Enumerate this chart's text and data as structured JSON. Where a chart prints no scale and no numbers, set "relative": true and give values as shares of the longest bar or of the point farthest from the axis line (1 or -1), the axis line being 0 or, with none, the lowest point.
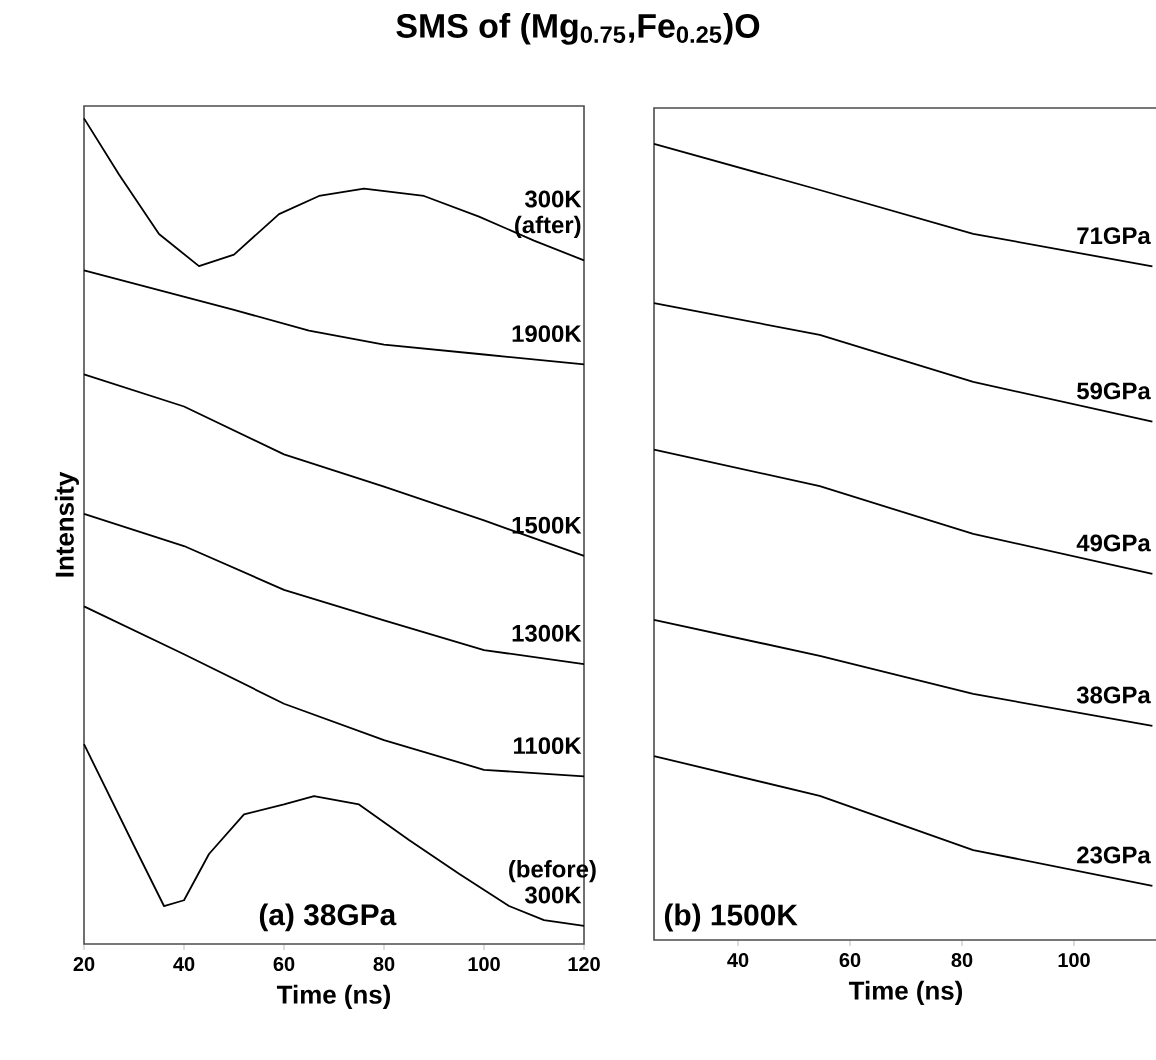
{
  "chart_data": [
    {
      "type": "line",
      "title": "SMS of (Mg$_{0.75}$,Fe$_{0.25}$)O",
      "xlabel": "Time (ns)",
      "ylabel": "Intensity",
      "relative": true,
      "xlim": [
        20,
        120
      ],
      "xticks": [
        20,
        40,
        60,
        80,
        100,
        120
      ],
      "annotations": [
        "(a) 38GPa"
      ],
      "series": [
        {
          "name": "300K (after)",
          "color": "#000000",
          "x": [
            20,
            27,
            35,
            43,
            50,
            59,
            67,
            76,
            88,
            99,
            110,
            120
          ],
          "values": [
            1.0,
            0.932,
            0.86,
            0.821,
            0.835,
            0.884,
            0.906,
            0.915,
            0.906,
            0.881,
            0.852,
            0.828
          ]
        },
        {
          "name": "1900K",
          "color": "#000000",
          "x": [
            20,
            35,
            50,
            65,
            80,
            100,
            120
          ],
          "values": [
            0.816,
            0.792,
            0.768,
            0.743,
            0.726,
            0.714,
            0.702
          ]
        },
        {
          "name": "1500K",
          "color": "#000000",
          "x": [
            20,
            40,
            60,
            80,
            100,
            120
          ],
          "values": [
            0.69,
            0.651,
            0.593,
            0.554,
            0.513,
            0.47
          ]
        },
        {
          "name": "1300K",
          "color": "#000000",
          "x": [
            20,
            40,
            60,
            80,
            100,
            120
          ],
          "values": [
            0.521,
            0.482,
            0.429,
            0.392,
            0.356,
            0.339
          ]
        },
        {
          "name": "1100K",
          "color": "#000000",
          "x": [
            20,
            40,
            60,
            80,
            100,
            120
          ],
          "values": [
            0.409,
            0.351,
            0.291,
            0.247,
            0.211,
            0.203
          ]
        },
        {
          "name": "(before) 300K",
          "color": "#000000",
          "x": [
            20,
            30,
            36,
            40,
            45,
            52,
            60,
            66,
            75,
            85,
            95,
            105,
            112,
            120
          ],
          "values": [
            0.242,
            0.119,
            0.046,
            0.053,
            0.109,
            0.157,
            0.169,
            0.179,
            0.169,
            0.126,
            0.085,
            0.046,
            0.029,
            0.022
          ]
        }
      ]
    },
    {
      "type": "line",
      "xlabel": "Time (ns)",
      "relative": true,
      "xlim": [
        25,
        115
      ],
      "xticks": [
        40,
        60,
        80,
        100
      ],
      "annotations": [
        "(b) 1500K"
      ],
      "series": [
        {
          "name": "71GPa",
          "color": "#000000",
          "x": [
            25,
            54.6,
            82,
            114
          ],
          "values": [
            1.0,
            0.942,
            0.887,
            0.846
          ]
        },
        {
          "name": "59GPa",
          "color": "#000000",
          "x": [
            25,
            54.6,
            82,
            114
          ],
          "values": [
            0.8,
            0.76,
            0.701,
            0.651
          ]
        },
        {
          "name": "49GPa",
          "color": "#000000",
          "x": [
            25,
            54.6,
            82,
            114
          ],
          "values": [
            0.616,
            0.57,
            0.51,
            0.46
          ]
        },
        {
          "name": "38GPa",
          "color": "#000000",
          "x": [
            25,
            54.6,
            82,
            114
          ],
          "values": [
            0.402,
            0.357,
            0.309,
            0.269
          ]
        },
        {
          "name": "23GPa",
          "color": "#000000",
          "x": [
            25,
            54.6,
            82,
            114
          ],
          "values": [
            0.231,
            0.181,
            0.113,
            0.068
          ]
        }
      ]
    }
  ]
}
